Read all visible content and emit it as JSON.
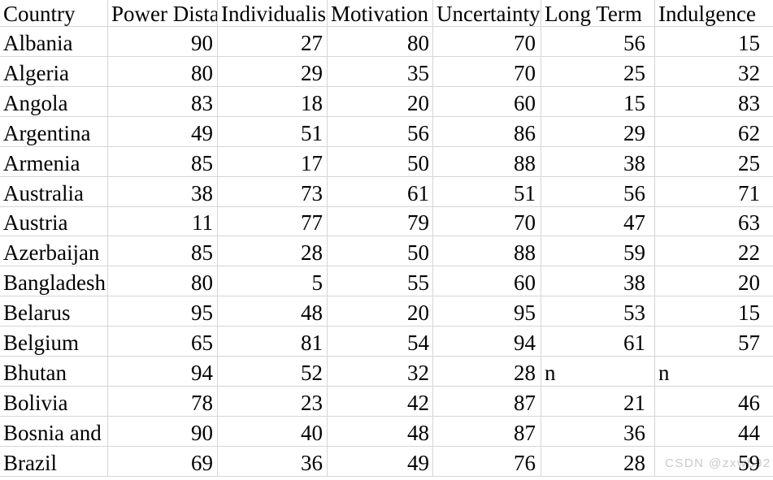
{
  "table": {
    "columns": [
      {
        "key": "country",
        "label": "Country"
      },
      {
        "key": "power-distance",
        "label": "Power Dista"
      },
      {
        "key": "individualism",
        "label": "Individualis"
      },
      {
        "key": "motivation",
        "label": "Motivation"
      },
      {
        "key": "uncertainty",
        "label": "Uncertainty"
      },
      {
        "key": "long-term",
        "label": "Long Term"
      },
      {
        "key": "indulgence",
        "label": "Indulgence"
      }
    ],
    "rows": [
      {
        "country": "Albania",
        "values": [
          "90",
          "27",
          "80",
          "70",
          "56",
          "15"
        ]
      },
      {
        "country": "Algeria",
        "values": [
          "80",
          "29",
          "35",
          "70",
          "25",
          "32"
        ]
      },
      {
        "country": "Angola",
        "values": [
          "83",
          "18",
          "20",
          "60",
          "15",
          "83"
        ]
      },
      {
        "country": "Argentina",
        "values": [
          "49",
          "51",
          "56",
          "86",
          "29",
          "62"
        ]
      },
      {
        "country": "Armenia",
        "values": [
          "85",
          "17",
          "50",
          "88",
          "38",
          "25"
        ]
      },
      {
        "country": "Australia",
        "values": [
          "38",
          "73",
          "61",
          "51",
          "56",
          "71"
        ]
      },
      {
        "country": "Austria",
        "values": [
          "11",
          "77",
          "79",
          "70",
          "47",
          "63"
        ]
      },
      {
        "country": "Azerbaijan",
        "values": [
          "85",
          "28",
          "50",
          "88",
          "59",
          "22"
        ]
      },
      {
        "country": "Bangladesh",
        "values": [
          "80",
          "5",
          "55",
          "60",
          "38",
          "20"
        ]
      },
      {
        "country": "Belarus",
        "values": [
          "95",
          "48",
          "20",
          "95",
          "53",
          "15"
        ]
      },
      {
        "country": "Belgium",
        "values": [
          "65",
          "81",
          "54",
          "94",
          "61",
          "57"
        ]
      },
      {
        "country": "Bhutan",
        "values": [
          "94",
          "52",
          "32",
          "28",
          "n",
          "n"
        ]
      },
      {
        "country": "Bolivia",
        "values": [
          "78",
          "23",
          "42",
          "87",
          "21",
          "46"
        ]
      },
      {
        "country": "Bosnia and",
        "values": [
          "90",
          "40",
          "48",
          "87",
          "36",
          "44"
        ]
      },
      {
        "country": "Brazil",
        "values": [
          "69",
          "36",
          "49",
          "76",
          "28",
          "59"
        ]
      }
    ]
  },
  "watermark": {
    "text": "CSDN @zxwb92"
  },
  "colors": {
    "background": "#ffffff",
    "gridline": "#d6d6d6",
    "text": "#000000",
    "watermark": "#c9c9c9"
  }
}
